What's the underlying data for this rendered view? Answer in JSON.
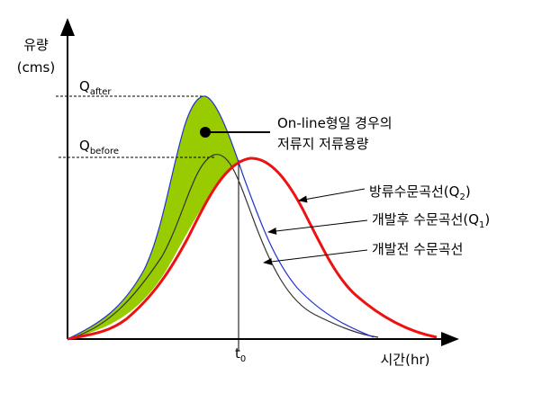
{
  "axes": {
    "y_label": "유량",
    "y_unit": "(cms)",
    "x_label": "시간(hr)"
  },
  "markers": {
    "q_after": {
      "symbol": "Q",
      "subscript": "after"
    },
    "q_before": {
      "symbol": "Q",
      "subscript": "before"
    },
    "t0": {
      "symbol": "t",
      "subscript": "0"
    }
  },
  "annotation": {
    "lines": [
      "On-line형일 경우의",
      "저류지 저류용량"
    ]
  },
  "curves": [
    {
      "label": "방류수문곡선(Q",
      "subscript": "2",
      "suffix": ")"
    },
    {
      "label": "개발후 수문곡선(Q",
      "subscript": "1",
      "suffix": ")"
    },
    {
      "label": "개발전 수문곡선"
    }
  ]
}
